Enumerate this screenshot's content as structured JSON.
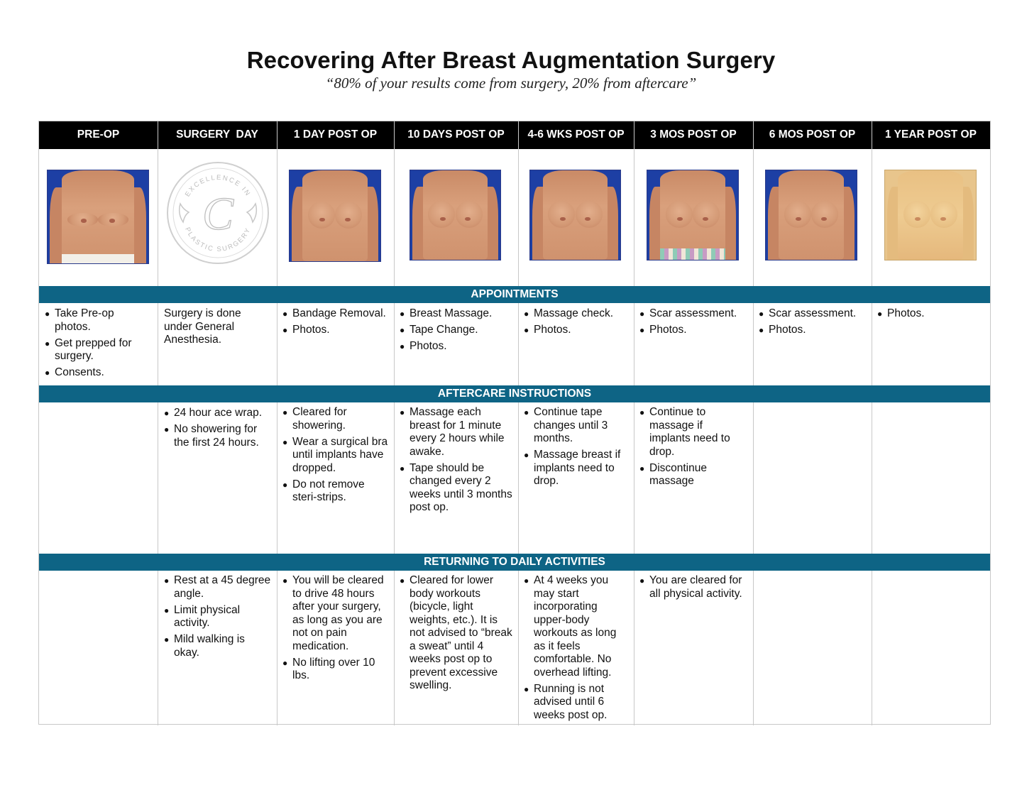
{
  "title": "Recovering After Breast Augmentation Surgery",
  "subtitle": "“80% of your results come from surgery, 20% from aftercare”",
  "columns": [
    "PRE-OP",
    "SURGERY  DAY",
    "1 DAY POST OP",
    "10 DAYS POST OP",
    "4-6 WKS POST OP",
    "3 MOS POST OP",
    "6 MOS POST OP",
    "1 YEAR POST OP"
  ],
  "logo": {
    "top_text": "EXCELLENCE IN",
    "letter": "C",
    "bottom_text": "PLASTIC SURGERY"
  },
  "sections": {
    "appointments": "APPOINTMENTS",
    "aftercare": "AFTERCARE INSTRUCTIONS",
    "activities": "RETURNING TO DAILY ACTIVITIES"
  },
  "appointments": [
    [
      "Take Pre-op photos.",
      "Get prepped for surgery.",
      "Consents."
    ],
    [
      "Surgery is done under General Anesthesia."
    ],
    [
      "Bandage Removal.",
      "Photos."
    ],
    [
      "Breast Massage.",
      "Tape Change.",
      "Photos."
    ],
    [
      "Massage check.",
      "Photos."
    ],
    [
      "Scar assessment.",
      "Photos."
    ],
    [
      "Scar assessment.",
      "Photos."
    ],
    [
      "Photos."
    ]
  ],
  "aftercare": [
    [],
    [
      "24 hour ace wrap.",
      "No showering for the first 24 hours."
    ],
    [
      "Cleared for showering.",
      "Wear a surgical bra until implants have dropped.",
      "Do not remove steri-strips."
    ],
    [
      "Massage each breast for 1 minute every 2 hours while awake.",
      "Tape should be changed every 2 weeks until 3 months post op."
    ],
    [
      "Continue tape changes until 3 months.",
      "Massage breast if implants need to drop."
    ],
    [
      "Continue to massage if implants need to drop.",
      "Discontinue massage"
    ],
    [],
    []
  ],
  "activities": [
    [],
    [
      "Rest at a 45 degree angle.",
      "Limit physical activity.",
      "Mild walking is okay."
    ],
    [
      "You will be cleared to drive 48 hours after your surgery, as long as you are not on pain medication.",
      "No lifting over 10 lbs."
    ],
    [
      "Cleared for lower body workouts (bicycle, light weights, etc.).  It is not advised to “break a sweat” until 4 weeks post op to prevent excessive swelling."
    ],
    [
      "At 4 weeks you may start incorporating upper-body workouts as long as it feels comfortable. No overhead lifting.",
      "Running is not advised until 6 weeks post op."
    ],
    [
      "You are cleared for all physical activity."
    ],
    [],
    []
  ],
  "colors": {
    "header_bg": "#000000",
    "band_bg": "#0e6485",
    "grid": "#c8c8c8"
  }
}
